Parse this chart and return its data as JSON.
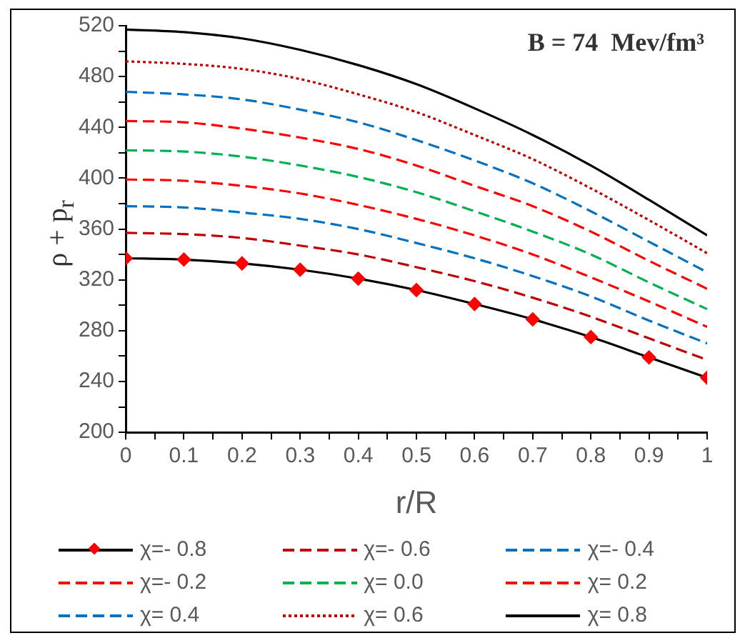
{
  "chart_data": {
    "type": "line",
    "xlabel": "r/R",
    "ylabel": "ρ + p$_{r}$",
    "annotations": [
      "B = 74  Mev/fm³"
    ],
    "x": [
      0,
      0.1,
      0.2,
      0.3,
      0.4,
      0.5,
      0.6,
      0.7,
      0.8,
      0.9,
      1
    ],
    "xlim": [
      0,
      1
    ],
    "xticks": [
      0,
      {
        "value": 0.05,
        "label": null
      },
      0.1,
      {
        "value": 0.15,
        "label": null
      },
      0.2,
      {
        "value": 0.25,
        "label": null
      },
      0.3,
      {
        "value": 0.35,
        "label": null
      },
      0.4,
      {
        "value": 0.45,
        "label": null
      },
      0.5,
      {
        "value": 0.55,
        "label": null
      },
      0.6,
      {
        "value": 0.65,
        "label": null
      },
      0.7,
      {
        "value": 0.75,
        "label": null
      },
      0.8,
      {
        "value": 0.85,
        "label": null
      },
      0.9,
      {
        "value": 0.95,
        "label": null
      },
      1
    ],
    "ylim": [
      200,
      520
    ],
    "yticks": [
      200,
      {
        "value": 220,
        "label": null
      },
      240,
      {
        "value": 260,
        "label": null
      },
      280,
      {
        "value": 300,
        "label": null
      },
      320,
      {
        "value": 340,
        "label": null
      },
      360,
      {
        "value": 380,
        "label": null
      },
      400,
      {
        "value": 420,
        "label": null
      },
      440,
      {
        "value": 460,
        "label": null
      },
      480,
      {
        "value": 500,
        "label": null
      },
      520
    ],
    "grid": false,
    "legend": "bottom",
    "series": [
      {
        "name": "χ=- 0.8",
        "color": "#000000",
        "marker": "diamond",
        "line_style": "solid",
        "values": [
          337,
          336,
          333,
          328,
          321,
          312,
          301,
          289,
          275,
          259,
          243
        ]
      },
      {
        "name": "χ=- 0.6",
        "color": "#c00000",
        "line_style": "dashed",
        "values": [
          357,
          356,
          353,
          347,
          340,
          330,
          319,
          306,
          291,
          274,
          257
        ]
      },
      {
        "name": "χ=- 0.4",
        "color": "#0070c0",
        "line_style": "dashed",
        "values": [
          378,
          377,
          373,
          368,
          360,
          349,
          337,
          323,
          307,
          288,
          270
        ]
      },
      {
        "name": "χ=- 0.2",
        "color": "#ff0000",
        "line_style": "dashed",
        "values": [
          399,
          398,
          394,
          388,
          379,
          368,
          355,
          340,
          322,
          303,
          283
        ]
      },
      {
        "name": "χ= 0.0",
        "color": "#00b050",
        "line_style": "dashed",
        "values": [
          422,
          421,
          417,
          410,
          401,
          389,
          374,
          358,
          340,
          318,
          297
        ]
      },
      {
        "name": "χ= 0.2",
        "color": "#ff0000",
        "line_style": "dashed",
        "values": [
          445,
          444,
          439,
          432,
          423,
          410,
          394,
          378,
          358,
          335,
          313
        ]
      },
      {
        "name": "χ= 0.4",
        "color": "#0070c0",
        "line_style": "dashed",
        "values": [
          468,
          466,
          462,
          454,
          444,
          430,
          414,
          396,
          374,
          350,
          326
        ]
      },
      {
        "name": "χ= 0.6",
        "color": "#c00000",
        "line_style": "dotted",
        "values": [
          492,
          490,
          486,
          478,
          466,
          452,
          434,
          415,
          392,
          367,
          341
        ]
      },
      {
        "name": "χ= 0.8",
        "color": "#000000",
        "line_style": "solid",
        "values": [
          517,
          515,
          510,
          501,
          489,
          474,
          455,
          434,
          410,
          383,
          355
        ]
      }
    ]
  }
}
